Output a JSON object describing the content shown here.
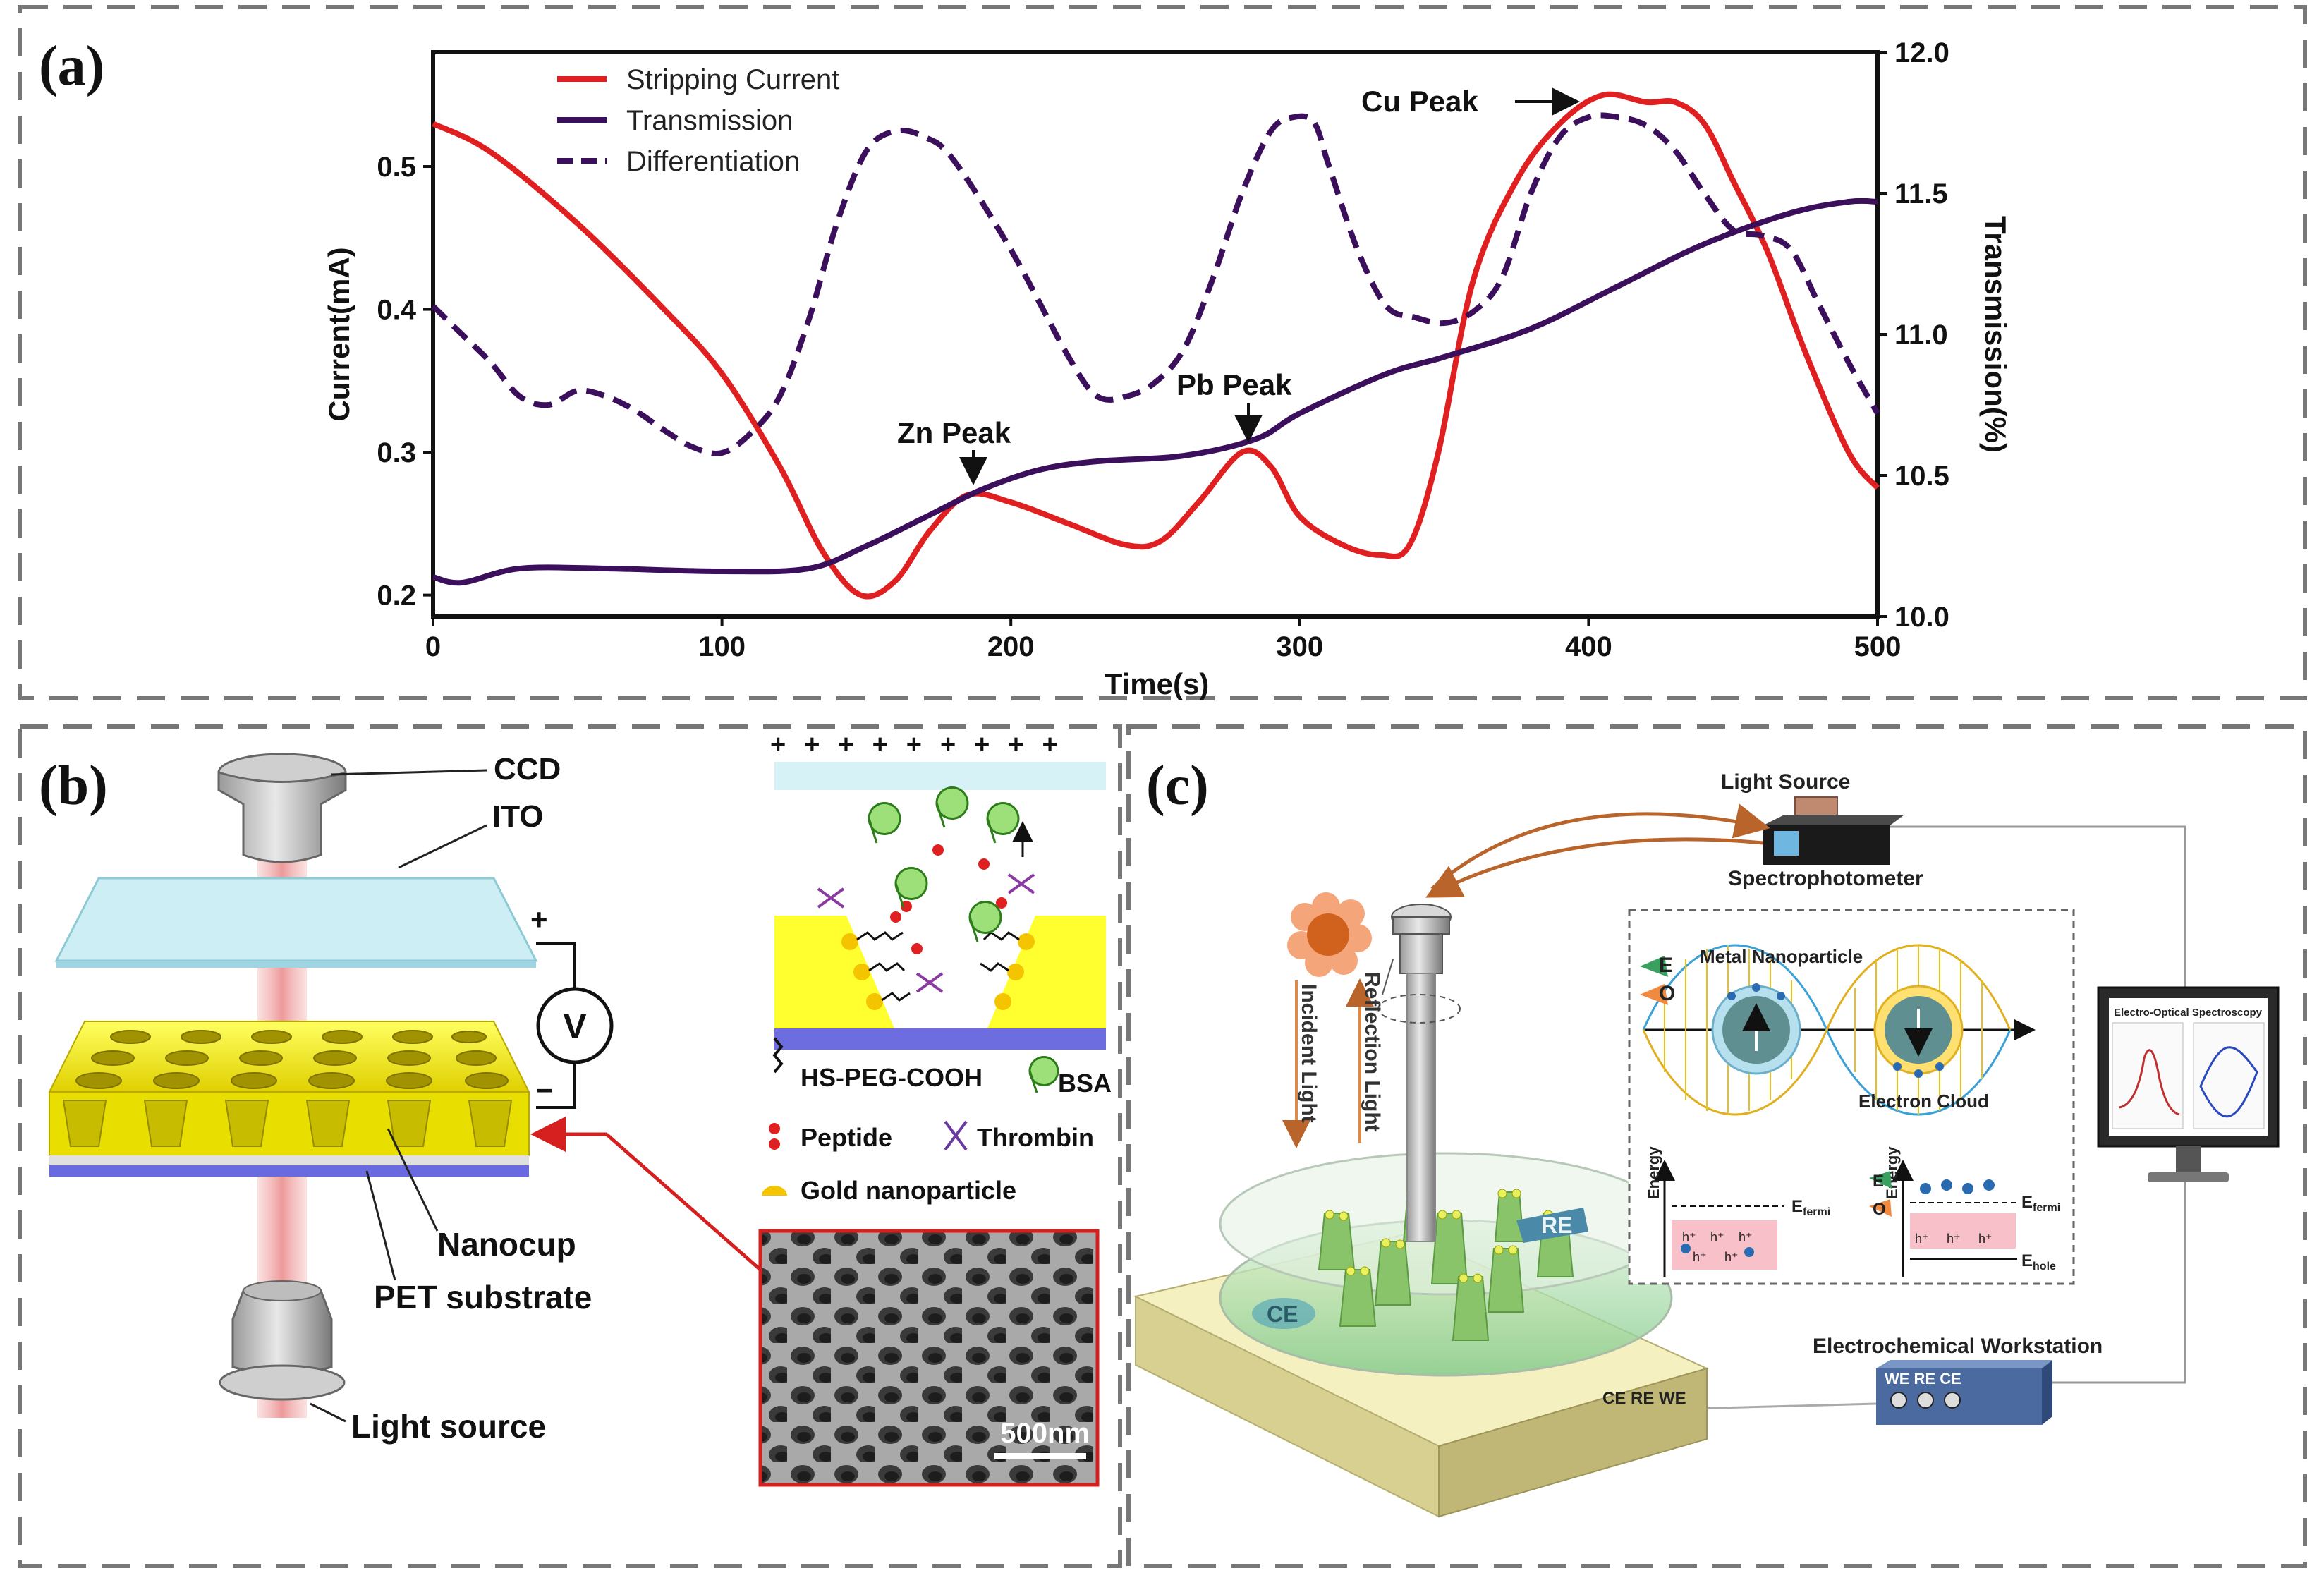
{
  "panel_a": {
    "label": "(a)",
    "legend": [
      "Stripping Current",
      "Transmission",
      "Differentiation"
    ],
    "annotations": {
      "cu": "Cu Peak",
      "zn": "Zn Peak",
      "pb": "Pb Peak"
    }
  },
  "chart_data": {
    "type": "line",
    "xlabel": "Time(s)",
    "ylabel": "Current(mA)",
    "y2label": "Transmission(%)",
    "xlim": [
      0,
      500
    ],
    "ylim": [
      0.185,
      0.58
    ],
    "y2lim": [
      10.0,
      12.0
    ],
    "xticks": [
      "0",
      "100",
      "200",
      "300",
      "400",
      "500"
    ],
    "yticks": [
      "0.2",
      "0.3",
      "0.4",
      "0.5"
    ],
    "y2ticks": [
      "10.0",
      "10.5",
      "11.0",
      "11.5",
      "12.0"
    ],
    "series": [
      {
        "name": "Stripping Current",
        "axis": "left",
        "color": "#e02020",
        "dash": false,
        "x": [
          0,
          20,
          50,
          80,
          100,
          120,
          135,
          148,
          160,
          172,
          185,
          200,
          220,
          240,
          252,
          265,
          280,
          290,
          300,
          315,
          328,
          338,
          348,
          360,
          375,
          390,
          405,
          420,
          430,
          440,
          450,
          462,
          475,
          490,
          500
        ],
        "y": [
          0.53,
          0.51,
          0.46,
          0.4,
          0.355,
          0.29,
          0.23,
          0.2,
          0.21,
          0.245,
          0.27,
          0.265,
          0.25,
          0.235,
          0.238,
          0.265,
          0.3,
          0.29,
          0.255,
          0.235,
          0.228,
          0.235,
          0.3,
          0.42,
          0.49,
          0.53,
          0.55,
          0.545,
          0.545,
          0.53,
          0.49,
          0.44,
          0.37,
          0.3,
          0.275
        ]
      },
      {
        "name": "Transmission",
        "axis": "right",
        "color": "#3b0f5c",
        "dash": false,
        "x": [
          0,
          10,
          30,
          60,
          100,
          130,
          150,
          170,
          190,
          210,
          230,
          260,
          285,
          300,
          330,
          350,
          380,
          410,
          440,
          470,
          490,
          500
        ],
        "y": [
          10.14,
          10.12,
          10.17,
          10.17,
          10.16,
          10.17,
          10.25,
          10.35,
          10.45,
          10.52,
          10.55,
          10.57,
          10.63,
          10.72,
          10.86,
          10.92,
          11.02,
          11.17,
          11.32,
          11.43,
          11.47,
          11.47
        ]
      },
      {
        "name": "Differentiation",
        "axis": "right",
        "color": "#3b0f5c",
        "dash": true,
        "x": [
          0,
          10,
          20,
          30,
          40,
          50,
          60,
          70,
          80,
          90,
          100,
          110,
          120,
          130,
          140,
          150,
          160,
          170,
          180,
          200,
          220,
          230,
          240,
          250,
          260,
          270,
          280,
          290,
          298,
          305,
          310,
          320,
          330,
          340,
          350,
          360,
          370,
          380,
          390,
          400,
          410,
          420,
          430,
          440,
          450,
          460,
          470,
          480,
          490,
          500
        ],
        "y": [
          11.1,
          11.0,
          10.9,
          10.78,
          10.75,
          10.8,
          10.78,
          10.73,
          10.66,
          10.6,
          10.58,
          10.65,
          10.78,
          11.05,
          11.4,
          11.65,
          11.72,
          11.7,
          11.62,
          11.3,
          10.92,
          10.78,
          10.78,
          10.83,
          10.95,
          11.2,
          11.5,
          11.72,
          11.77,
          11.75,
          11.6,
          11.3,
          11.1,
          11.06,
          11.04,
          11.08,
          11.2,
          11.5,
          11.7,
          11.77,
          11.77,
          11.74,
          11.65,
          11.5,
          11.37,
          11.35,
          11.3,
          11.1,
          10.9,
          10.72
        ]
      }
    ]
  },
  "panel_b": {
    "label": "(b)",
    "ccd": "CCD",
    "ito": "ITO",
    "plus": "+",
    "minus": "−",
    "voltage": "V",
    "nanocup": "Nanocup",
    "pet": "PET substrate",
    "light_source": "Light source",
    "legend": {
      "peg": "HS-PEG-COOH",
      "bsa": "BSA",
      "peptide": "Peptide",
      "thrombin": "Thrombin",
      "gold": "Gold nanoparticle"
    },
    "scale_bar": "500nm"
  },
  "panel_c": {
    "label": "(c)",
    "light_source": "Light Source",
    "spectrophotometer": "Spectrophotometer",
    "metal_np": "Metal Nanoparticle",
    "electron_cloud": "Electron Cloud",
    "e_label": "E",
    "o_label": "O",
    "energy": "Energy",
    "e_fermi": "E",
    "fermi_sub": "fermi",
    "e_hole": "E",
    "hole_sub": "hole",
    "h_plus": "h⁺",
    "monitor_title": "Electro-Optical Spectroscopy",
    "incident": "Incident Light",
    "reflection": "Reflection Light",
    "re": "RE",
    "ce": "CE",
    "workstation": "Electrochemical Workstation",
    "workstation_ports": "WE RE CE",
    "base_ports": "CE RE WE"
  }
}
